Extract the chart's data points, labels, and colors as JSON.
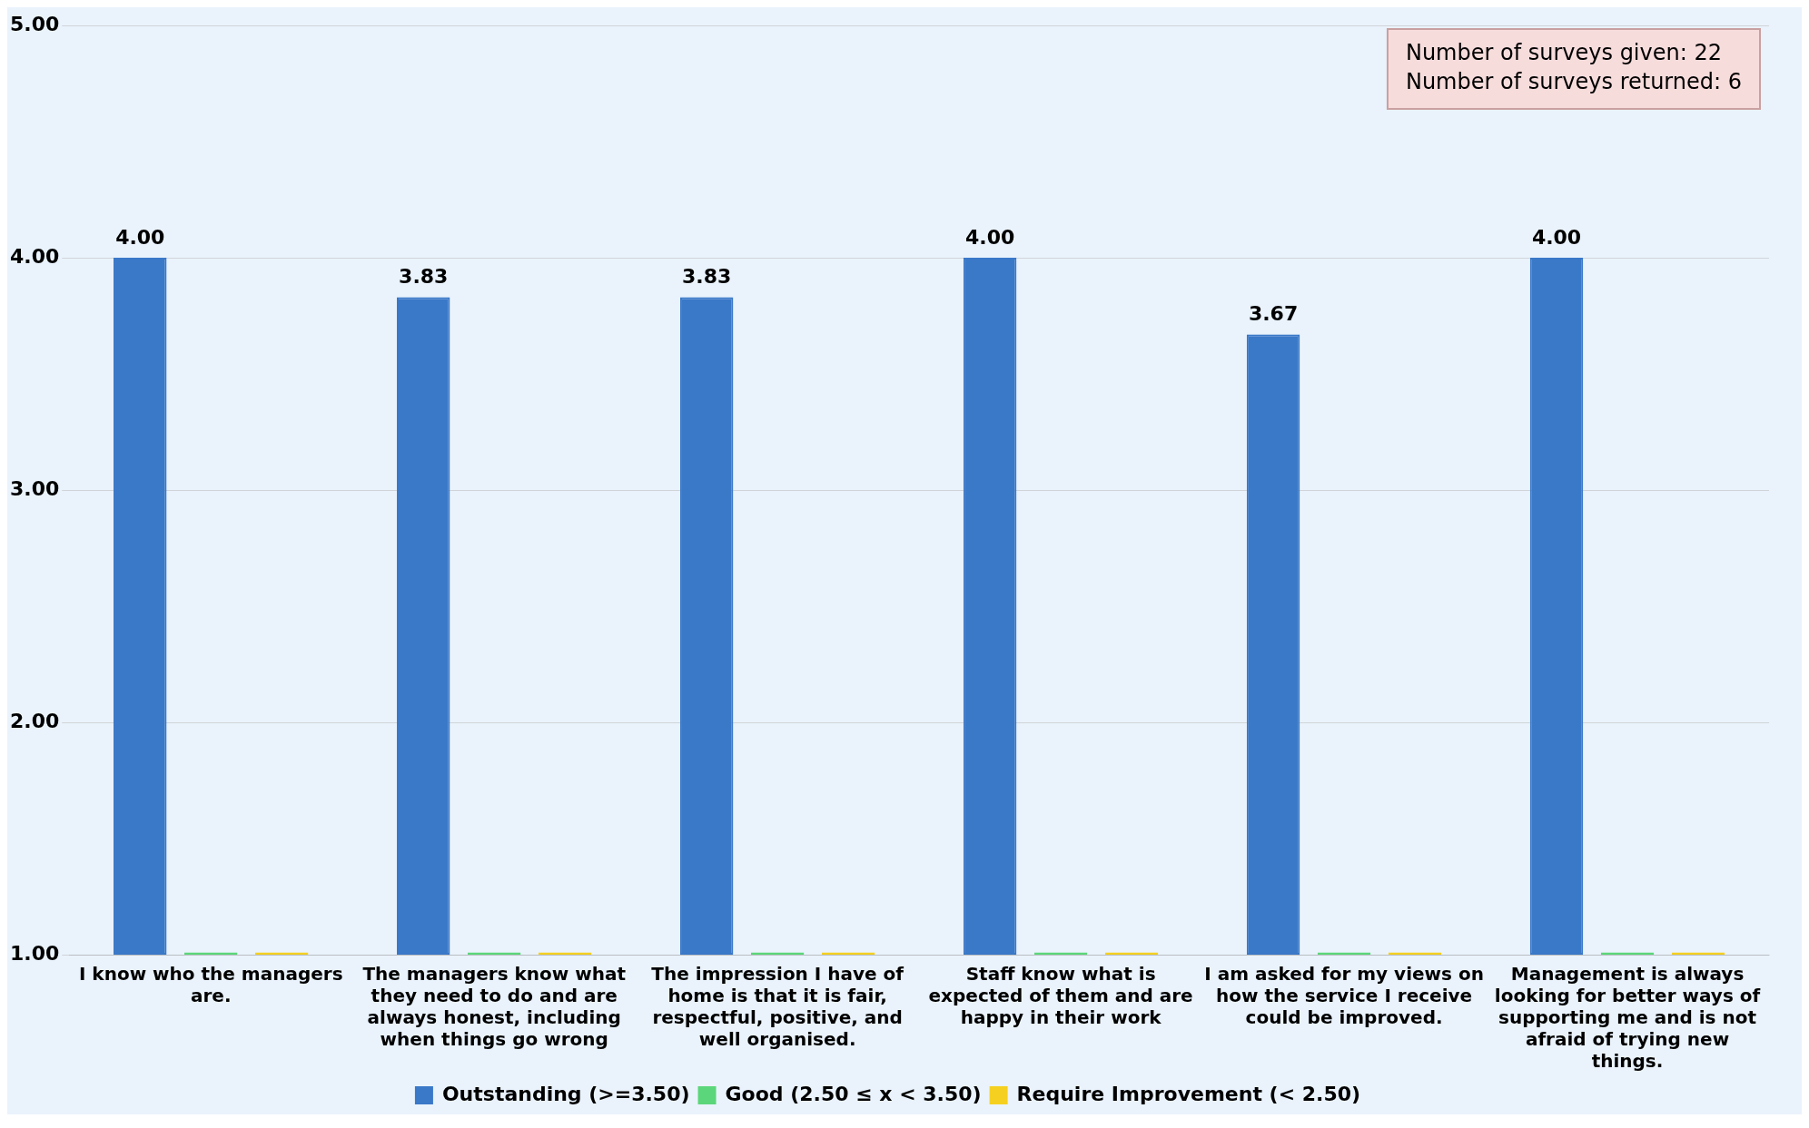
{
  "chart_data": {
    "type": "bar",
    "categories": [
      "I know who the managers are.",
      "The managers know what they need to do and are always honest, including when things go wrong",
      "The impression I have of home is that it is fair, respectful, positive, and well organised.",
      "Staff know what is expected of them and are happy in their work",
      "I am asked for my views on how the service I receive could be improved.",
      "Management is always looking for better ways of supporting me and is not afraid of trying new things."
    ],
    "series": [
      {
        "name": "Outstanding (>=3.50)",
        "color": "#3a78c8",
        "values": [
          4.0,
          3.83,
          3.83,
          4.0,
          3.67,
          4.0
        ],
        "value_labels": [
          "4.00",
          "3.83",
          "3.83",
          "4.00",
          "3.67",
          "4.00"
        ]
      },
      {
        "name": "Good (2.50 ≤ x < 3.50)",
        "color": "#5cd67a",
        "values": [
          1.01,
          1.01,
          1.01,
          1.01,
          1.01,
          1.01
        ]
      },
      {
        "name": "Require Improvement (< 2.50)",
        "color": "#f5d020",
        "values": [
          1.01,
          1.01,
          1.01,
          1.01,
          1.01,
          1.01
        ]
      }
    ],
    "ylim": [
      1,
      5
    ],
    "yticks": [
      {
        "value": 1,
        "label": "1.00"
      },
      {
        "value": 2,
        "label": "2.00"
      },
      {
        "value": 3,
        "label": "3.00"
      },
      {
        "value": 4,
        "label": "4.00"
      },
      {
        "value": 5,
        "label": "5.00"
      }
    ],
    "grid": "y",
    "legend": "bottom",
    "annotations": [
      "Number of surveys given: 22",
      "Number of surveys returned: 6"
    ]
  }
}
